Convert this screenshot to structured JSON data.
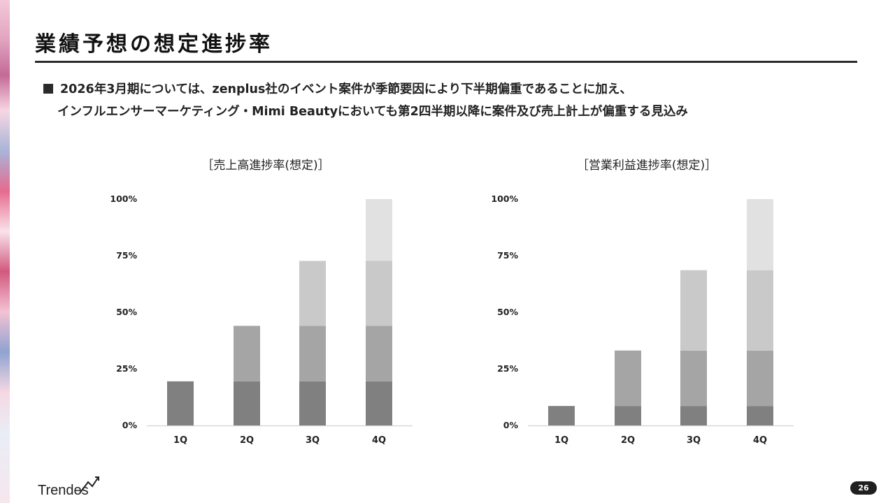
{
  "page": {
    "title": "業績予想の想定進捗率",
    "bullet_line1": "2026年3月期については、zenplus社のイベント案件が季節要因により下半期偏重であることに加え、",
    "bullet_line2": "インフルエンサーマーケティング・Mimi Beautyにおいても第2四半期以降に案件及び売上計上が偏重する見込み",
    "page_number": "26"
  },
  "logo": {
    "text": "Trendes",
    "colors": {
      "mark": "#222222"
    }
  },
  "colors": {
    "q1": "#808080",
    "q2": "#a5a5a5",
    "q3": "#c9c9c9",
    "q4": "#e1e1e1",
    "axis_text": "#222222",
    "baseline": "#d9d9d9"
  },
  "chart_data": [
    {
      "type": "bar",
      "stacked": true,
      "title": "［売上高進捗率(想定)］",
      "categories": [
        "1Q",
        "2Q",
        "3Q",
        "4Q"
      ],
      "series": [
        {
          "values": [
            19.5,
            19.5,
            19.5,
            19.5
          ]
        },
        {
          "values": [
            0,
            24.5,
            24.5,
            24.5
          ]
        },
        {
          "values": [
            0,
            0,
            28.7,
            28.7
          ]
        },
        {
          "values": [
            0,
            0,
            0,
            27.3
          ]
        }
      ],
      "ylim": [
        0,
        100
      ],
      "yticks": [
        "0%",
        "25%",
        "50%",
        "75%",
        "100%"
      ],
      "grid": false
    },
    {
      "type": "bar",
      "stacked": true,
      "title": "［営業利益進捗率(想定)］",
      "categories": [
        "1Q",
        "2Q",
        "3Q",
        "4Q"
      ],
      "series": [
        {
          "values": [
            8.6,
            8.6,
            8.6,
            8.6
          ]
        },
        {
          "values": [
            0,
            24.5,
            24.5,
            24.5
          ]
        },
        {
          "values": [
            0,
            0,
            35.5,
            35.5
          ]
        },
        {
          "values": [
            0,
            0,
            0,
            31.4
          ]
        }
      ],
      "ylim": [
        0,
        100
      ],
      "yticks": [
        "0%",
        "25%",
        "50%",
        "75%",
        "100%"
      ],
      "grid": false
    }
  ]
}
